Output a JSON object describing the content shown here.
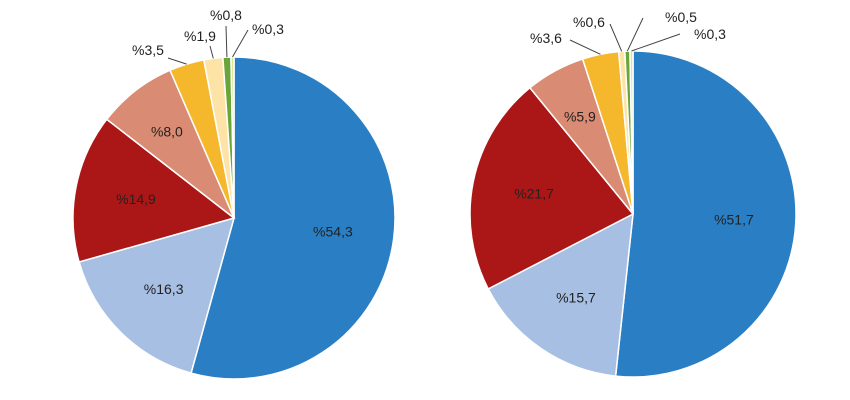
{
  "chart_data": [
    {
      "type": "pie",
      "slices": [
        {
          "label": "%54,3",
          "value": 54.3,
          "color": "#2a7fc4"
        },
        {
          "label": "%16,3",
          "value": 16.3,
          "color": "#a7bfe3"
        },
        {
          "label": "%14,9",
          "value": 14.9,
          "color": "#ab1716"
        },
        {
          "label": "%8,0",
          "value": 8.0,
          "color": "#d98b73"
        },
        {
          "label": "%3,5",
          "value": 3.5,
          "color": "#f5b72b"
        },
        {
          "label": "%1,9",
          "value": 1.9,
          "color": "#fde3a6"
        },
        {
          "label": "%0,8",
          "value": 0.8,
          "color": "#6aa539"
        },
        {
          "label": "%0,3",
          "value": 0.3,
          "color": "#d8e69c"
        }
      ]
    },
    {
      "type": "pie",
      "slices": [
        {
          "label": "%51,7",
          "value": 51.7,
          "color": "#2a7fc4"
        },
        {
          "label": "%15,7",
          "value": 15.7,
          "color": "#a7bfe3"
        },
        {
          "label": "%21,7",
          "value": 21.7,
          "color": "#ab1716"
        },
        {
          "label": "%5,9",
          "value": 5.9,
          "color": "#d98b73"
        },
        {
          "label": "%3,6",
          "value": 3.6,
          "color": "#f5b72b"
        },
        {
          "label": "%0,6",
          "value": 0.6,
          "color": "#fde3a6"
        },
        {
          "label": "%0,5",
          "value": 0.5,
          "color": "#6aa539"
        },
        {
          "label": "%0,3",
          "value": 0.3,
          "color": "#d8e69c"
        }
      ]
    }
  ]
}
